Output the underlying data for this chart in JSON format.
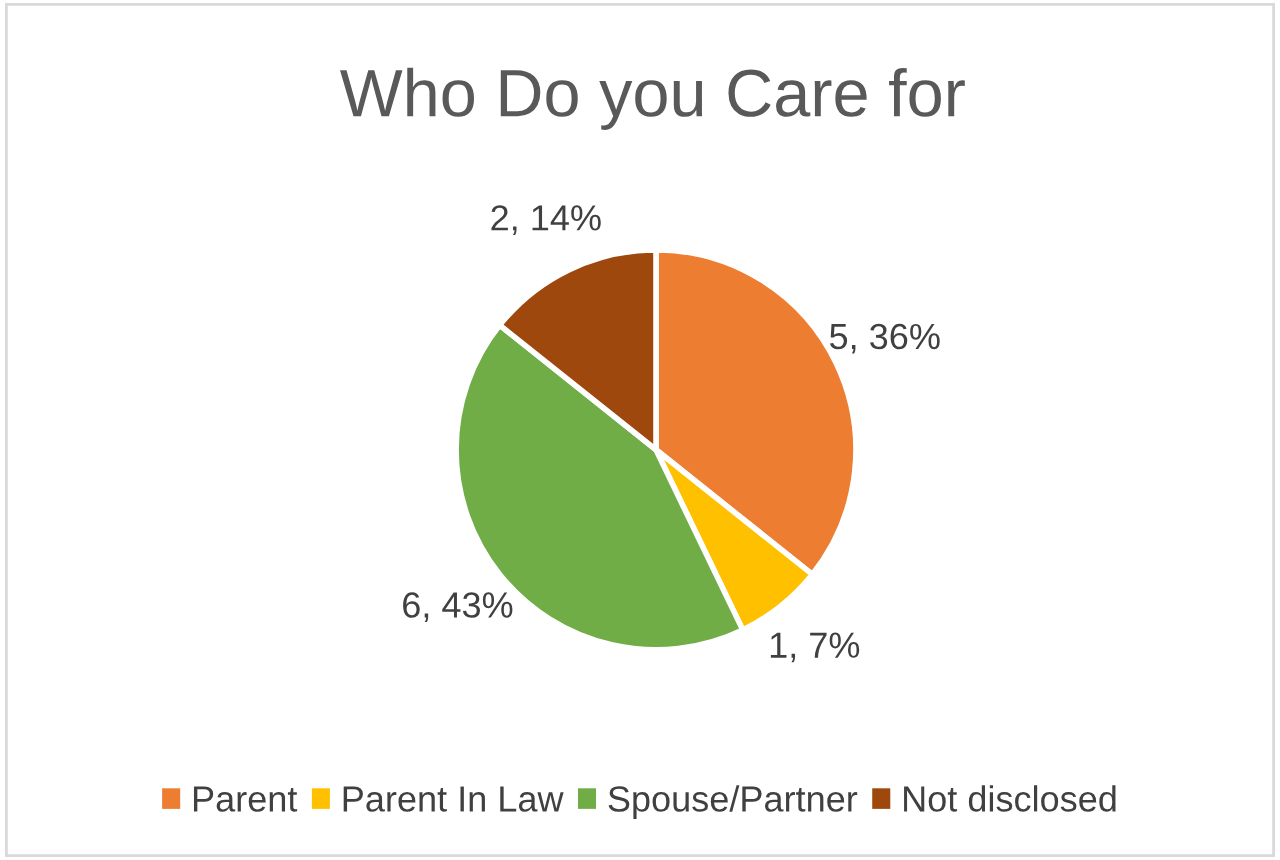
{
  "chart_data": {
    "type": "pie",
    "title": "Who Do you Care for",
    "categories": [
      "Parent",
      "Parent In Law",
      "Spouse/Partner",
      "Not disclosed"
    ],
    "values": [
      5,
      1,
      6,
      2
    ],
    "colors": [
      "#ed7d31",
      "#ffc000",
      "#70ad47",
      "#9e480e"
    ],
    "value_labels": [
      "5, 36%",
      "1, 7%",
      "6, 43%",
      "2, 14%"
    ],
    "legend": "bottom"
  }
}
